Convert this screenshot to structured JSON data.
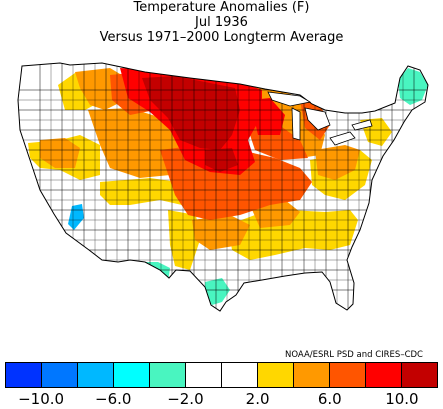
{
  "title": {
    "line1": "Temperature Anomalies (F)",
    "line2": "Jul 1936",
    "line3": "Versus 1971–2000 Longterm Average"
  },
  "credit": "NOAA/ESRL PSD and CIRES–CDC",
  "legend": {
    "bins": [
      {
        "range": [
          -12,
          -10
        ],
        "color": "#0033ff"
      },
      {
        "range": [
          -10,
          -8
        ],
        "color": "#0077ff"
      },
      {
        "range": [
          -8,
          -6
        ],
        "color": "#00b8ff"
      },
      {
        "range": [
          -6,
          -4
        ],
        "color": "#00ffff"
      },
      {
        "range": [
          -4,
          -2
        ],
        "color": "#49f5c0"
      },
      {
        "range": [
          -2,
          0
        ],
        "color": "#ffffff"
      },
      {
        "range": [
          0,
          2
        ],
        "color": "#ffffff"
      },
      {
        "range": [
          2,
          4
        ],
        "color": "#ffd700"
      },
      {
        "range": [
          4,
          6
        ],
        "color": "#ff9900"
      },
      {
        "range": [
          6,
          8
        ],
        "color": "#ff5500"
      },
      {
        "range": [
          8,
          10
        ],
        "color": "#ff0000"
      },
      {
        "range": [
          10,
          12
        ],
        "color": "#c30000"
      }
    ],
    "ticks": [
      "−10.0",
      "−6.0",
      "−2.0",
      "2.0",
      "6.0",
      "10.0"
    ]
  },
  "map": {
    "region": "Contiguous United States",
    "units": "degrees F",
    "anomaly_regions": [
      {
        "area": "northern-plains",
        "band": "8 to 12",
        "color": "#c30000"
      },
      {
        "area": "upper-midwest",
        "band": "8 to 10",
        "color": "#ff0000"
      },
      {
        "area": "central-plains",
        "band": "6 to 8",
        "color": "#ff5500"
      },
      {
        "area": "midwest-rockies",
        "band": "4 to 6",
        "color": "#ff9900"
      },
      {
        "area": "ohio-valley-south",
        "band": "2 to 4",
        "color": "#ffd700"
      },
      {
        "area": "west-texas",
        "band": "-4 to -2",
        "color": "#49f5c0"
      },
      {
        "area": "south-texas",
        "band": "-4 to -2",
        "color": "#49f5c0"
      },
      {
        "area": "maine",
        "band": "-4 to -2",
        "color": "#49f5c0"
      },
      {
        "area": "nevada-pocket",
        "band": "-8 to -6",
        "color": "#00b8ff"
      }
    ]
  }
}
